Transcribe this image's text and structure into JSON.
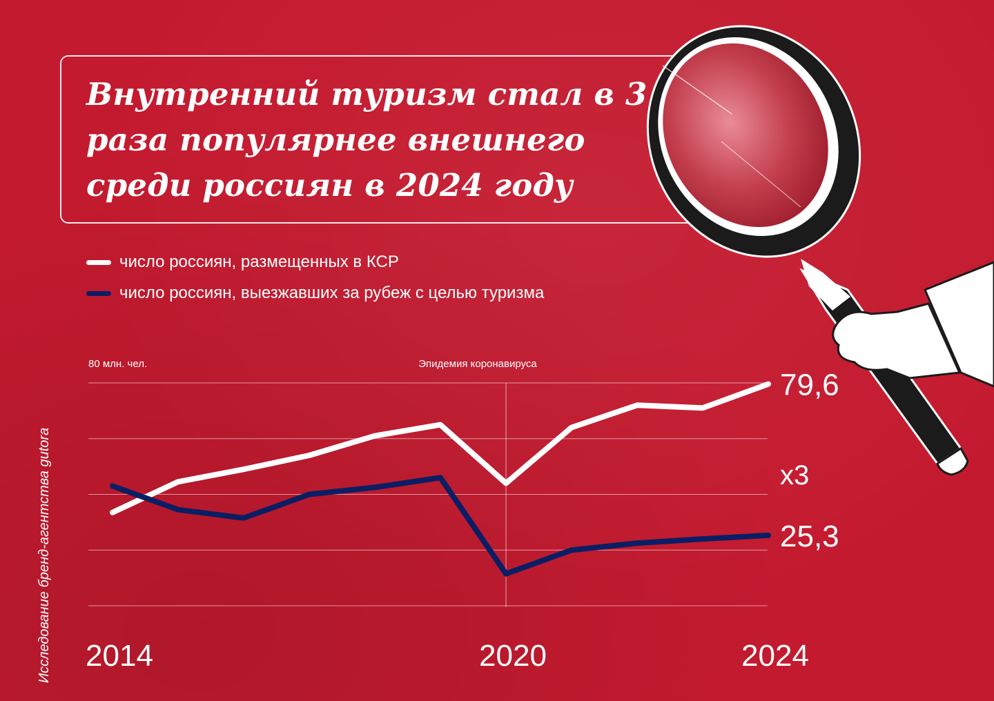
{
  "title": "Внутренний туризм стал в 3 раза популярнее внешнего среди россиян в 2024 году",
  "legend": [
    {
      "label": "число россиян, размещенных в КСР",
      "color": "#ffffff"
    },
    {
      "label": "число россиян, выезжавших за рубеж с целью туризма",
      "color": "#0c1e63"
    }
  ],
  "source_credit": "Исследование бренд-агентства gutora",
  "chart_data": {
    "type": "line",
    "x": [
      2014,
      2015,
      2016,
      2017,
      2018,
      2019,
      2020,
      2021,
      2022,
      2023,
      2024
    ],
    "x_tick_labels": [
      "2014",
      "2020",
      "2024"
    ],
    "y_axis_label": "80 млн. чел.",
    "ylim": [
      0,
      80
    ],
    "grid": true,
    "annotation": {
      "label": "Эпидемия коронавируса",
      "x": 2020
    },
    "multiplier_label": "x3",
    "series": [
      {
        "name": "число россиян, размещенных в КСР",
        "color": "#ffffff",
        "values": [
          33.5,
          44.5,
          49,
          54,
          61,
          65,
          44,
          64,
          72,
          71,
          79.6
        ],
        "end_label": "79,6"
      },
      {
        "name": "число россиян, выезжавших за рубеж с целью туризма",
        "color": "#0c1e63",
        "values": [
          43,
          34.5,
          31.5,
          40,
          42.5,
          46,
          11.5,
          20,
          22.5,
          24,
          25.3
        ],
        "end_label": "25,3"
      }
    ]
  }
}
